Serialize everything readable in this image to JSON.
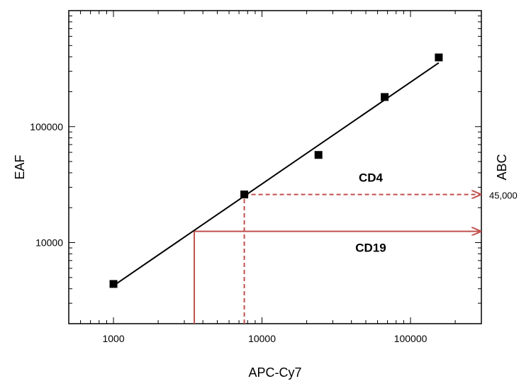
{
  "chart_data": {
    "type": "scatter",
    "title": "",
    "xlabel": "APC-Cy7",
    "ylabel": "EAF",
    "y2label": "ABC",
    "x_scale": "log",
    "y_scale": "log",
    "xlim": [
      500,
      300000
    ],
    "ylim": [
      2000,
      1000000
    ],
    "grid": false,
    "x_tick_labels": [
      {
        "value": 1000,
        "label": "1000"
      },
      {
        "value": 10000,
        "label": "10000"
      },
      {
        "value": 100000,
        "label": "100000"
      }
    ],
    "y_tick_labels": [
      {
        "value": 10000,
        "label": "10000"
      },
      {
        "value": 100000,
        "label": "100000"
      }
    ],
    "series": [
      {
        "points": [
          {
            "x": 1000,
            "y": 4400
          },
          {
            "x": 7600,
            "y": 26000
          },
          {
            "x": 24000,
            "y": 57000
          },
          {
            "x": 67000,
            "y": 180000
          },
          {
            "x": 155000,
            "y": 395000
          }
        ]
      }
    ],
    "fit_line": {
      "x_start": 1000,
      "y_start": 4250,
      "x_end": 155000,
      "y_end": 355000
    },
    "guides": [
      {
        "label": "CD4",
        "x": 7600,
        "y": 26000,
        "style": "dashed",
        "color": "#c0504d",
        "value_label": "45,000"
      },
      {
        "label": "CD19",
        "x": 3500,
        "y": 12500,
        "style": "solid",
        "color": "#c0504d",
        "value_label": ""
      }
    ],
    "colors": {
      "marker": "#000000",
      "guide": "#c0504d"
    }
  }
}
